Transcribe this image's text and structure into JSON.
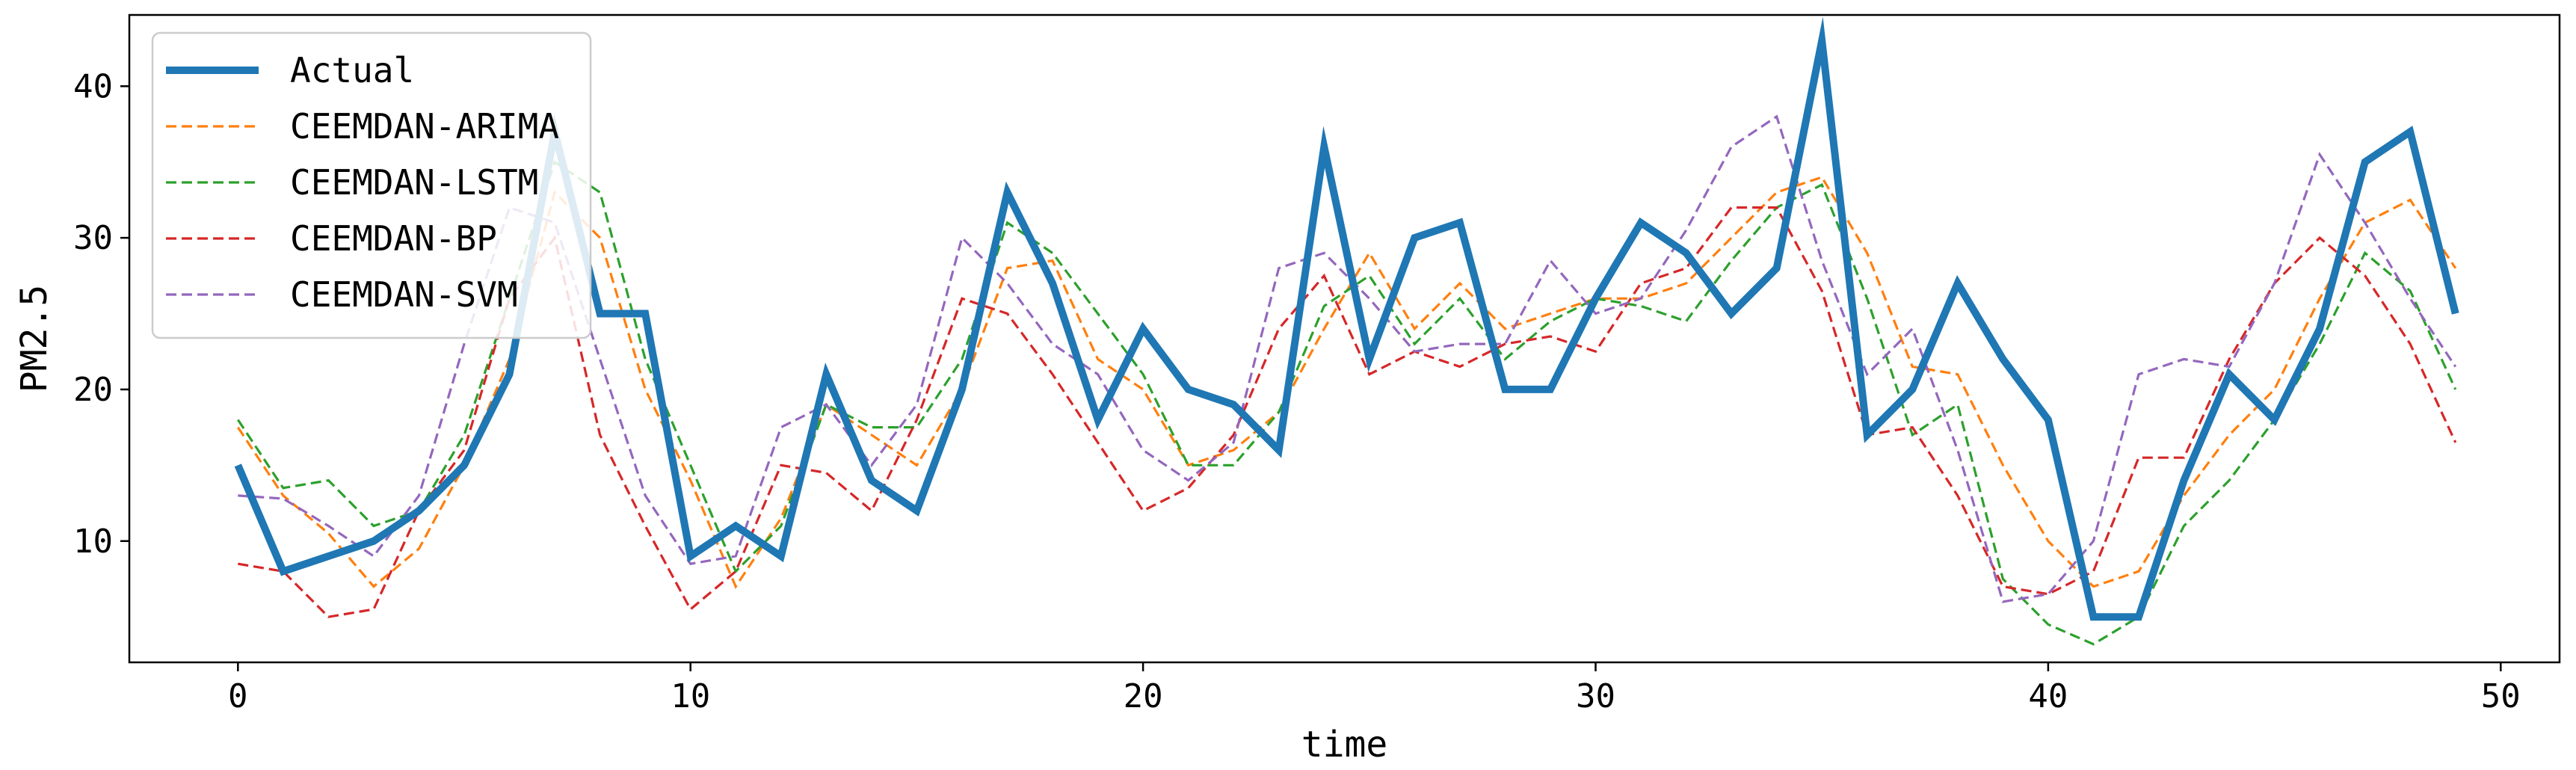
{
  "chart_data": {
    "type": "line",
    "title": "",
    "xlabel": "time",
    "ylabel": "PM2.5",
    "xlim": [
      -2.4,
      51.3
    ],
    "ylim": [
      2.0,
      44.7
    ],
    "xticks": [
      0,
      10,
      20,
      30,
      40,
      50
    ],
    "yticks": [
      10,
      20,
      30,
      40
    ],
    "grid": false,
    "legend_position": "top-left",
    "x": [
      0,
      1,
      2,
      3,
      4,
      5,
      6,
      7,
      8,
      9,
      10,
      11,
      12,
      13,
      14,
      15,
      16,
      17,
      18,
      19,
      20,
      21,
      22,
      23,
      24,
      25,
      26,
      27,
      28,
      29,
      30,
      31,
      32,
      33,
      34,
      35,
      36,
      37,
      38,
      39,
      40,
      41,
      42,
      43,
      44,
      45,
      46,
      47,
      48,
      49
    ],
    "series": [
      {
        "name": "Actual",
        "color": "#1f77b4",
        "style": "solid",
        "values": [
          15,
          8,
          9,
          10,
          12,
          15,
          21,
          37,
          25,
          25,
          9,
          11,
          9,
          21,
          14,
          12,
          20,
          33,
          27,
          18,
          24,
          20,
          19,
          16,
          36,
          22,
          30,
          31,
          20,
          20,
          26,
          31,
          29,
          25,
          28,
          43,
          17,
          20,
          27,
          22,
          18,
          5,
          5,
          14,
          21,
          18,
          24,
          35,
          37,
          25
        ]
      },
      {
        "name": "CEEMDAN-ARIMA",
        "color": "#ff7f0e",
        "style": "dashed",
        "values": [
          17.5,
          13,
          10.5,
          7,
          9.5,
          15,
          22,
          33,
          30,
          20,
          14,
          7,
          11.5,
          19,
          17,
          15,
          20,
          28,
          28.5,
          22,
          20,
          15,
          16,
          18.5,
          24,
          29,
          24,
          27,
          24,
          25,
          26,
          26,
          27,
          30,
          33,
          34,
          29,
          21.5,
          21,
          15,
          10,
          7,
          8,
          13,
          17,
          20,
          26,
          31,
          32.5,
          28
        ]
      },
      {
        "name": "CEEMDAN-LSTM",
        "color": "#2ca02c",
        "style": "dashed",
        "values": [
          18,
          13.5,
          14,
          11,
          12,
          17,
          26,
          35,
          33,
          22,
          15,
          8,
          11,
          19,
          17.5,
          17.5,
          22,
          31,
          29,
          25,
          21,
          15,
          15,
          18.5,
          25.5,
          27.5,
          23,
          26,
          22,
          24.5,
          26,
          25.5,
          24.5,
          28.5,
          32,
          33.5,
          26,
          17,
          19,
          7.5,
          4.5,
          3.2,
          5,
          11,
          14,
          18,
          23,
          29,
          26.5,
          20
        ]
      },
      {
        "name": "CEEMDAN-BP",
        "color": "#d62728",
        "style": "dashed",
        "values": [
          8.5,
          8,
          5,
          5.5,
          12,
          16,
          26,
          30,
          17,
          11,
          5.5,
          8,
          15,
          14.5,
          12,
          18,
          26,
          25,
          21,
          16.5,
          12,
          13.5,
          17,
          24,
          27.5,
          21,
          22.5,
          21.5,
          23,
          23.5,
          22.5,
          27,
          28,
          32,
          32,
          26.5,
          17,
          17.5,
          13,
          7,
          6.5,
          8,
          15.5,
          15.5,
          22,
          27,
          30,
          27.5,
          23,
          16.5
        ]
      },
      {
        "name": "CEEMDAN-SVM",
        "color": "#9467bd",
        "style": "dashed",
        "values": [
          13,
          12.8,
          11,
          9,
          13,
          23,
          32,
          31,
          22,
          13,
          8.5,
          9,
          17.5,
          19,
          15,
          19,
          30,
          27,
          23,
          21,
          16,
          14,
          16.5,
          28,
          29,
          26,
          22.5,
          23,
          23,
          28.5,
          25,
          26,
          30.5,
          36,
          38,
          28.5,
          21,
          24,
          16,
          6,
          6.5,
          10,
          21,
          22,
          21.5,
          27,
          35.5,
          31,
          26,
          21.5
        ]
      }
    ]
  }
}
